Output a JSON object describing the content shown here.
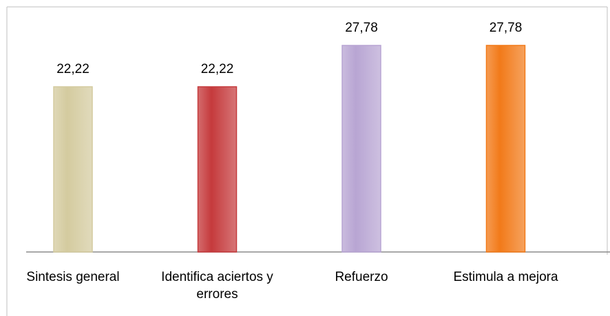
{
  "chart_data": {
    "type": "bar",
    "categories": [
      "Sintesis general",
      "Identifica aciertos y errores",
      "Refuerzo",
      "Estimula a mejora"
    ],
    "values": [
      22.22,
      22.22,
      27.78,
      27.78
    ],
    "value_labels": [
      "22,22",
      "22,22",
      "27,78",
      "27,78"
    ],
    "colors": [
      "#d4cb9f",
      "#c53a3c",
      "#b8a5d3",
      "#f27a19"
    ]
  }
}
